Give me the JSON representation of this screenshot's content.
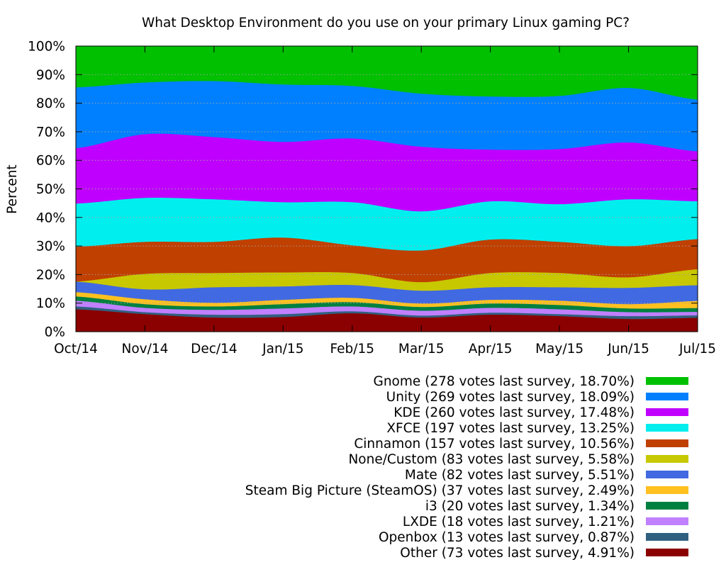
{
  "chart_data": {
    "type": "area",
    "stacked": true,
    "title": "What Desktop Environment do you use on your primary Linux gaming PC?",
    "ylabel": "Percent",
    "ylim": [
      0,
      100
    ],
    "y_ticks": [
      {
        "value": 0,
        "label": "0%"
      },
      {
        "value": 10,
        "label": "10%"
      },
      {
        "value": 20,
        "label": "20%"
      },
      {
        "value": 30,
        "label": "30%"
      },
      {
        "value": 40,
        "label": "40%"
      },
      {
        "value": 50,
        "label": "50%"
      },
      {
        "value": 60,
        "label": "60%"
      },
      {
        "value": 70,
        "label": "70%"
      },
      {
        "value": 80,
        "label": "80%"
      },
      {
        "value": 90,
        "label": "90%"
      },
      {
        "value": 100,
        "label": "100%"
      }
    ],
    "categories": [
      "Oct/14",
      "Nov/14",
      "Dec/14",
      "Jan/15",
      "Feb/15",
      "Mar/15",
      "Apr/15",
      "May/15",
      "Jun/15",
      "Jul/15"
    ],
    "grid": true,
    "legend_position": "bottom-right",
    "series": [
      {
        "name": "Gnome (278 votes last survey, 18.70%)",
        "color": "#00c000",
        "values": [
          14.4,
          12.7,
          12.2,
          13.4,
          13.9,
          16.6,
          17.6,
          17.4,
          14.6,
          18.7
        ]
      },
      {
        "name": "Unity (269 votes last survey, 18.09%)",
        "color": "#0080ff",
        "values": [
          21.3,
          18.1,
          19.6,
          20.1,
          18.4,
          18.6,
          18.6,
          18.6,
          19.1,
          18.09
        ]
      },
      {
        "name": "KDE (260 votes last survey, 17.48%)",
        "color": "#c000ff",
        "values": [
          19.4,
          22.3,
          21.8,
          21.1,
          22.3,
          22.6,
          18.1,
          19.3,
          19.9,
          17.48
        ]
      },
      {
        "name": "XFCE (197 votes last survey, 13.25%)",
        "color": "#00eeee",
        "values": [
          15.1,
          15.4,
          14.9,
          12.4,
          15.1,
          13.7,
          13.4,
          13.2,
          16.4,
          13.25
        ]
      },
      {
        "name": "Cinnamon (157 votes last survey, 10.56%)",
        "color": "#c04000",
        "values": [
          12.2,
          11.2,
          10.9,
          12.2,
          9.7,
          11.1,
          11.7,
          10.9,
          10.9,
          10.56
        ]
      },
      {
        "name": "None/Custom (83 votes last survey, 5.58%)",
        "color": "#c8c800",
        "values": [
          0.0,
          5.4,
          5.0,
          4.9,
          4.2,
          3.0,
          5.0,
          5.0,
          3.7,
          5.58
        ]
      },
      {
        "name": "Mate (82 votes last survey, 5.51%)",
        "color": "#4169e1",
        "values": [
          3.7,
          3.5,
          5.4,
          4.7,
          4.5,
          4.5,
          4.4,
          4.7,
          5.7,
          5.51
        ]
      },
      {
        "name": "Steam Big Picture (SteamOS) (37 votes last survey, 2.49%)",
        "color": "#ffc020",
        "values": [
          1.5,
          1.7,
          1.3,
          1.5,
          1.5,
          1.2,
          1.3,
          1.5,
          1.5,
          2.49
        ]
      },
      {
        "name": "i3 (20 votes last survey, 1.34%)",
        "color": "#008040",
        "values": [
          1.5,
          1.3,
          1.2,
          1.5,
          1.5,
          1.3,
          1.5,
          1.5,
          1.3,
          1.34
        ]
      },
      {
        "name": "LXDE (18 votes last survey, 1.21%)",
        "color": "#c080ff",
        "values": [
          2.0,
          1.5,
          1.7,
          2.0,
          1.7,
          1.7,
          1.7,
          1.7,
          1.4,
          1.21
        ]
      },
      {
        "name": "Openbox (13 votes last survey, 0.87%)",
        "color": "#306080",
        "values": [
          1.0,
          0.7,
          1.0,
          1.0,
          0.7,
          0.7,
          0.7,
          0.7,
          1.0,
          0.87
        ]
      },
      {
        "name": "Other (73 votes last survey, 4.91%)",
        "color": "#8b0000",
        "values": [
          7.9,
          6.2,
          5.0,
          5.2,
          6.5,
          5.0,
          6.0,
          5.5,
          4.5,
          4.91
        ]
      }
    ]
  }
}
